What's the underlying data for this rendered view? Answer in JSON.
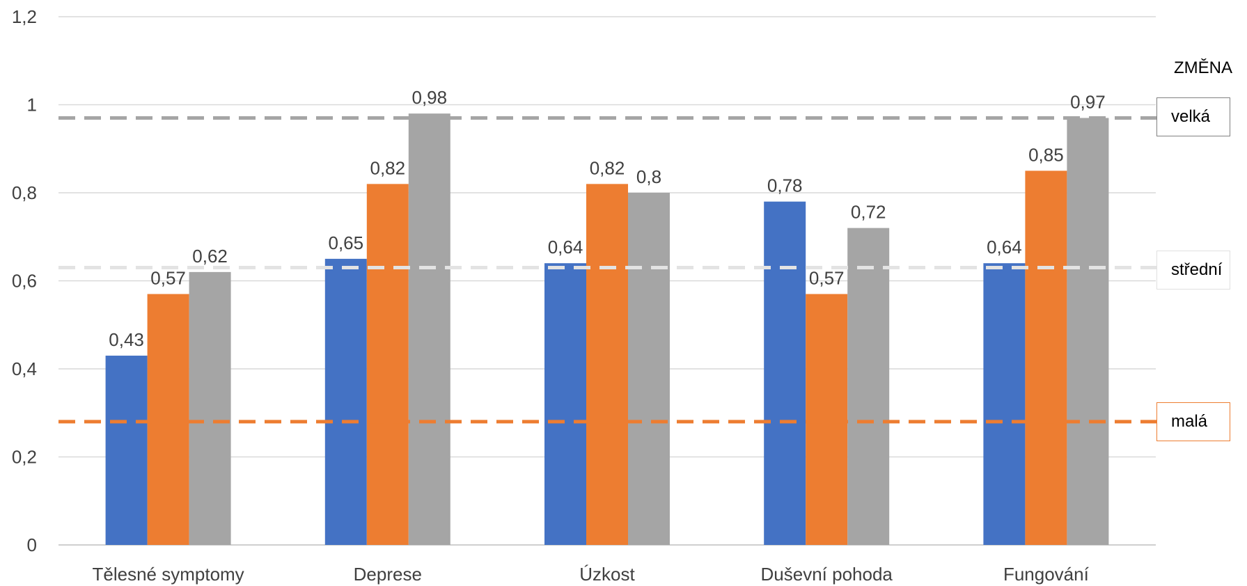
{
  "chart_data": {
    "type": "bar",
    "categories": [
      "Tělesné symptomy",
      "Deprese",
      "Úzkost",
      "Duševní pohoda",
      "Fungování"
    ],
    "series": [
      {
        "color": "#4472c4",
        "values": [
          0.43,
          0.65,
          0.64,
          0.78,
          0.64
        ],
        "labels": [
          "0,43",
          "0,65",
          "0,64",
          "0,78",
          "0,64"
        ]
      },
      {
        "color": "#ed7d31",
        "values": [
          0.57,
          0.82,
          0.82,
          0.57,
          0.85
        ],
        "labels": [
          "0,57",
          "0,82",
          "0,82",
          "0,57",
          "0,85"
        ]
      },
      {
        "color": "#a5a5a5",
        "values": [
          0.62,
          0.98,
          0.8,
          0.72,
          0.97
        ],
        "labels": [
          "0,62",
          "0,98",
          "0,8",
          "0,72",
          "0,97"
        ]
      }
    ],
    "ylim": [
      0,
      1.2
    ],
    "yticks": [
      0,
      0.2,
      0.4,
      0.6,
      0.8,
      1,
      1.2
    ],
    "ytick_labels": [
      "0",
      "0,2",
      "0,4",
      "0,6",
      "0,8",
      "1",
      "1,2"
    ],
    "grid": true,
    "reference_lines": [
      {
        "id": "velka",
        "label": "velká",
        "value": 0.97,
        "color": "#a5a5a5"
      },
      {
        "id": "stredni",
        "label": "střední",
        "value": 0.63,
        "color": "#e3e3e3"
      },
      {
        "id": "mala",
        "label": "malá",
        "value": 0.28,
        "color": "#ed7d31"
      }
    ],
    "reference_title": "ZMĚNA"
  }
}
